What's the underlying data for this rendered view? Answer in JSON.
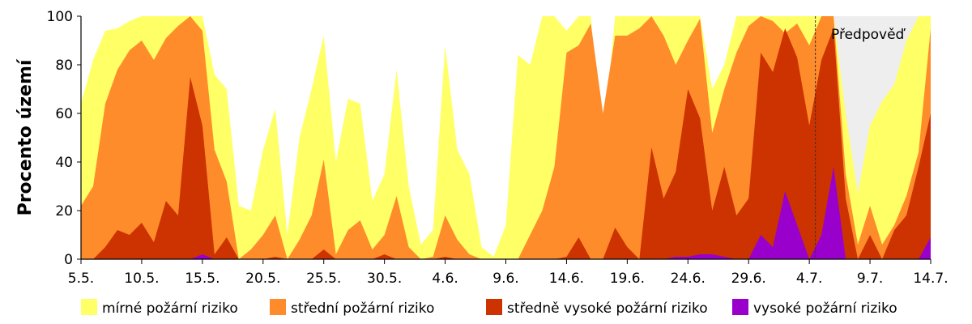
{
  "chart_data": {
    "type": "area",
    "stacked": true,
    "title": "",
    "xlabel": "",
    "ylabel": "Procento území",
    "ylim": [
      0,
      100
    ],
    "yticks": [
      0,
      20,
      40,
      60,
      80,
      100
    ],
    "xlim": [
      0,
      70
    ],
    "x_tick_positions": [
      0,
      5,
      10,
      15,
      20,
      25,
      30,
      35,
      40,
      45,
      50,
      55,
      60,
      65,
      70
    ],
    "x_tick_labels": [
      "5.5.",
      "10.5.",
      "15.5.",
      "20.5.",
      "25.5.",
      "30.5.",
      "4.6.",
      "9.6.",
      "14.6.",
      "19.6.",
      "24.6.",
      "29.6.",
      "4.7.",
      "9.7.",
      "14.7."
    ],
    "grid": false,
    "legend_position": "bottom",
    "forecast": {
      "label": "Předpověď",
      "start_day_index": 60.5,
      "fill_color": "#eeeeee"
    },
    "dates_note": "x = day index from 5.5. (0) to 14.7. (70)",
    "series": [
      {
        "name": "vysoké požární riziko",
        "color": "#9900cc",
        "points": [
          [
            0,
            0
          ],
          [
            9,
            0
          ],
          [
            10,
            2
          ],
          [
            11,
            0
          ],
          [
            30,
            0
          ],
          [
            36,
            0
          ],
          [
            38,
            0
          ],
          [
            44,
            0
          ],
          [
            46,
            0
          ],
          [
            47,
            0
          ],
          [
            48,
            0
          ],
          [
            49,
            1
          ],
          [
            50,
            1
          ],
          [
            51,
            2
          ],
          [
            52,
            2
          ],
          [
            53,
            1
          ],
          [
            54,
            0
          ],
          [
            55,
            0
          ],
          [
            56,
            10
          ],
          [
            57,
            5
          ],
          [
            58,
            28
          ],
          [
            59,
            14
          ],
          [
            60,
            0
          ],
          [
            61,
            10
          ],
          [
            62,
            38
          ],
          [
            63,
            0
          ],
          [
            69,
            0
          ],
          [
            70,
            9
          ]
        ]
      },
      {
        "name": "středně vysoké požární riziko",
        "color": "#cc3300",
        "points": [
          [
            0,
            0
          ],
          [
            1,
            0
          ],
          [
            2,
            5
          ],
          [
            3,
            12
          ],
          [
            4,
            10
          ],
          [
            5,
            15
          ],
          [
            6,
            7
          ],
          [
            7,
            24
          ],
          [
            8,
            18
          ],
          [
            9,
            75
          ],
          [
            10,
            55
          ],
          [
            11,
            2
          ],
          [
            12,
            9
          ],
          [
            13,
            0
          ],
          [
            14,
            0
          ],
          [
            15,
            0
          ],
          [
            16,
            1
          ],
          [
            17,
            0
          ],
          [
            18,
            0
          ],
          [
            19,
            0
          ],
          [
            20,
            4
          ],
          [
            21,
            0
          ],
          [
            22,
            0
          ],
          [
            23,
            0
          ],
          [
            24,
            0
          ],
          [
            25,
            2
          ],
          [
            26,
            0
          ],
          [
            27,
            0
          ],
          [
            28,
            0
          ],
          [
            29,
            0
          ],
          [
            30,
            1
          ],
          [
            31,
            0
          ],
          [
            32,
            0
          ],
          [
            33,
            0
          ],
          [
            34,
            0
          ],
          [
            35,
            0
          ],
          [
            36,
            0
          ],
          [
            37,
            0
          ],
          [
            38,
            0
          ],
          [
            39,
            0
          ],
          [
            40,
            1
          ],
          [
            41,
            9
          ],
          [
            42,
            0
          ],
          [
            43,
            0
          ],
          [
            44,
            13
          ],
          [
            45,
            5
          ],
          [
            46,
            0
          ],
          [
            47,
            46
          ],
          [
            48,
            25
          ],
          [
            49,
            36
          ],
          [
            50,
            70
          ],
          [
            51,
            58
          ],
          [
            52,
            20
          ],
          [
            53,
            38
          ],
          [
            54,
            18
          ],
          [
            55,
            25
          ],
          [
            56,
            85
          ],
          [
            57,
            77
          ],
          [
            58,
            95
          ],
          [
            59,
            83
          ],
          [
            60,
            55
          ],
          [
            61,
            82
          ],
          [
            62,
            95
          ],
          [
            63,
            25
          ],
          [
            64,
            0
          ],
          [
            65,
            10
          ],
          [
            66,
            0
          ],
          [
            67,
            12
          ],
          [
            68,
            18
          ],
          [
            69,
            38
          ],
          [
            70,
            60
          ]
        ]
      },
      {
        "name": "střední požární riziko",
        "color": "#ff8c2b",
        "points": [
          [
            0,
            22
          ],
          [
            1,
            30
          ],
          [
            2,
            64
          ],
          [
            3,
            78
          ],
          [
            4,
            86
          ],
          [
            5,
            90
          ],
          [
            6,
            82
          ],
          [
            7,
            91
          ],
          [
            8,
            96
          ],
          [
            9,
            100
          ],
          [
            10,
            94
          ],
          [
            11,
            45
          ],
          [
            12,
            32
          ],
          [
            13,
            0
          ],
          [
            14,
            4
          ],
          [
            15,
            10
          ],
          [
            16,
            18
          ],
          [
            17,
            0
          ],
          [
            18,
            8
          ],
          [
            19,
            18
          ],
          [
            20,
            41
          ],
          [
            21,
            2
          ],
          [
            22,
            12
          ],
          [
            23,
            16
          ],
          [
            24,
            4
          ],
          [
            25,
            10
          ],
          [
            26,
            26
          ],
          [
            27,
            5
          ],
          [
            28,
            0
          ],
          [
            29,
            1
          ],
          [
            30,
            18
          ],
          [
            31,
            8
          ],
          [
            32,
            2
          ],
          [
            33,
            0
          ],
          [
            34,
            0
          ],
          [
            35,
            0
          ],
          [
            36,
            0
          ],
          [
            37,
            10
          ],
          [
            38,
            20
          ],
          [
            39,
            38
          ],
          [
            40,
            85
          ],
          [
            41,
            88
          ],
          [
            42,
            97
          ],
          [
            43,
            60
          ],
          [
            44,
            92
          ],
          [
            45,
            92
          ],
          [
            46,
            95
          ],
          [
            47,
            100
          ],
          [
            48,
            92
          ],
          [
            49,
            80
          ],
          [
            50,
            90
          ],
          [
            51,
            99
          ],
          [
            52,
            52
          ],
          [
            53,
            70
          ],
          [
            54,
            85
          ],
          [
            55,
            96
          ],
          [
            56,
            100
          ],
          [
            57,
            98
          ],
          [
            58,
            93
          ],
          [
            59,
            97
          ],
          [
            60,
            88
          ],
          [
            61,
            100
          ],
          [
            62,
            100
          ],
          [
            63,
            35
          ],
          [
            64,
            6
          ],
          [
            65,
            22
          ],
          [
            66,
            6
          ],
          [
            67,
            14
          ],
          [
            68,
            26
          ],
          [
            69,
            44
          ],
          [
            70,
            95
          ]
        ]
      },
      {
        "name": "mírné požární riziko",
        "color": "#ffff66",
        "points": [
          [
            0,
            64
          ],
          [
            1,
            82
          ],
          [
            2,
            94
          ],
          [
            3,
            95
          ],
          [
            4,
            98
          ],
          [
            5,
            100
          ],
          [
            6,
            100
          ],
          [
            7,
            100
          ],
          [
            8,
            100
          ],
          [
            9,
            100
          ],
          [
            10,
            100
          ],
          [
            11,
            76
          ],
          [
            12,
            70
          ],
          [
            13,
            22
          ],
          [
            14,
            20
          ],
          [
            15,
            45
          ],
          [
            16,
            62
          ],
          [
            17,
            10
          ],
          [
            18,
            50
          ],
          [
            19,
            70
          ],
          [
            20,
            92
          ],
          [
            21,
            40
          ],
          [
            22,
            66
          ],
          [
            23,
            64
          ],
          [
            24,
            24
          ],
          [
            25,
            35
          ],
          [
            26,
            78
          ],
          [
            27,
            30
          ],
          [
            28,
            6
          ],
          [
            29,
            12
          ],
          [
            30,
            88
          ],
          [
            31,
            45
          ],
          [
            32,
            35
          ],
          [
            33,
            5
          ],
          [
            34,
            1
          ],
          [
            35,
            14
          ],
          [
            36,
            84
          ],
          [
            37,
            80
          ],
          [
            38,
            100
          ],
          [
            39,
            100
          ],
          [
            40,
            94
          ],
          [
            41,
            100
          ],
          [
            42,
            100
          ],
          [
            43,
            45
          ],
          [
            44,
            100
          ],
          [
            45,
            100
          ],
          [
            46,
            100
          ],
          [
            47,
            100
          ],
          [
            48,
            100
          ],
          [
            49,
            100
          ],
          [
            50,
            100
          ],
          [
            51,
            100
          ],
          [
            52,
            70
          ],
          [
            53,
            80
          ],
          [
            54,
            100
          ],
          [
            55,
            100
          ],
          [
            56,
            100
          ],
          [
            57,
            100
          ],
          [
            58,
            100
          ],
          [
            59,
            100
          ],
          [
            60,
            100
          ],
          [
            61,
            100
          ],
          [
            62,
            100
          ],
          [
            63,
            60
          ],
          [
            64,
            27
          ],
          [
            65,
            55
          ],
          [
            66,
            65
          ],
          [
            67,
            72
          ],
          [
            68,
            90
          ],
          [
            69,
            100
          ],
          [
            70,
            100
          ]
        ]
      }
    ],
    "legend": [
      {
        "label": "mírné požární riziko",
        "color": "#ffff66"
      },
      {
        "label": "střední požární riziko",
        "color": "#ff8c2b"
      },
      {
        "label": "středně vysoké požární riziko",
        "color": "#cc3300"
      },
      {
        "label": "vysoké požární riziko",
        "color": "#9900cc"
      }
    ]
  }
}
